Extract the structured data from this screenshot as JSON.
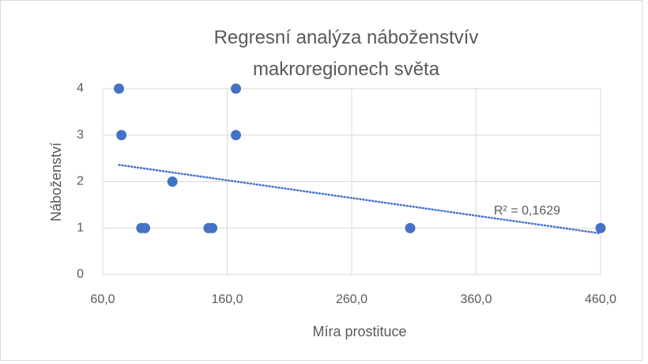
{
  "chart_data": {
    "type": "scatter",
    "title": "Regresní analýza náboženstvív makroregionech světa",
    "xlabel": "Míra prostituce",
    "ylabel": "Náboženství",
    "series": [
      {
        "name": "Náboženství",
        "color": "#4472c4",
        "x": [
          73,
          75,
          116,
          91,
          94,
          145,
          148,
          167,
          167,
          307,
          460
        ],
        "values": [
          4,
          3,
          2,
          1,
          1,
          1,
          1,
          4,
          3,
          1,
          1
        ]
      }
    ],
    "trendline": {
      "type": "linear",
      "label": "R² = 0,1629"
    },
    "xlim": [
      60,
      460
    ],
    "xticks": [
      {
        "value": 60,
        "label": "60,0"
      },
      {
        "value": 160,
        "label": "160,0"
      },
      {
        "value": 260,
        "label": "260,0"
      },
      {
        "value": 360,
        "label": "360,0"
      },
      {
        "value": 460,
        "label": "460,0"
      }
    ],
    "ylim": [
      0,
      4
    ],
    "yticks": [
      0,
      1,
      2,
      3,
      4
    ],
    "grid": true
  }
}
